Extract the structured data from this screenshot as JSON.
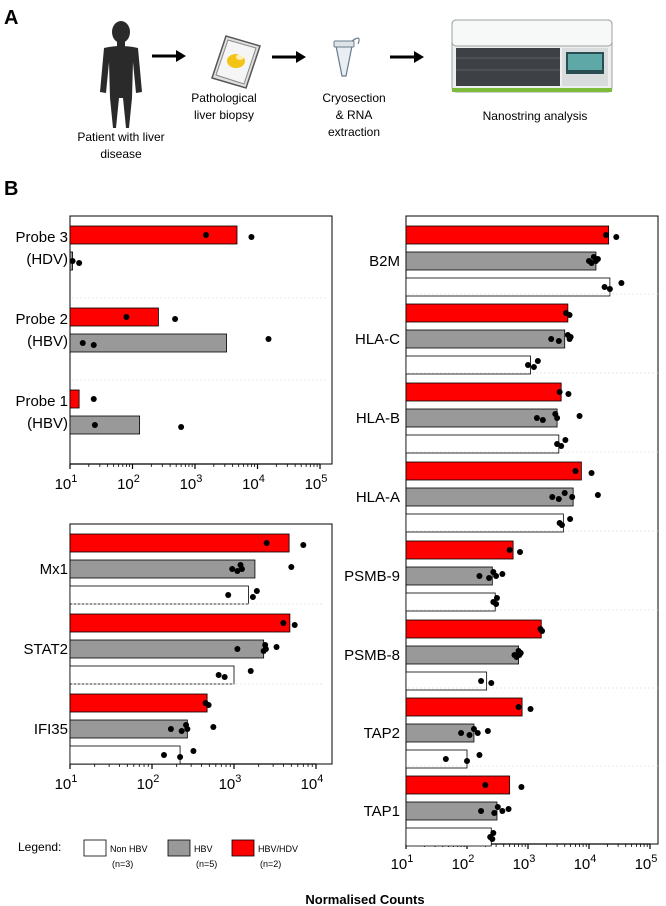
{
  "panel_a": {
    "label": "A",
    "steps": [
      {
        "lines": [
          "Patient with liver",
          "disease"
        ]
      },
      {
        "lines": [
          "Pathological",
          "liver biopsy"
        ]
      },
      {
        "lines": [
          "Cryosection",
          "& RNA",
          "extraction"
        ]
      },
      {
        "lines": [
          "Nanostring analysis"
        ]
      }
    ]
  },
  "panel_b": {
    "label": "B",
    "xlabel": "Normalised Counts",
    "legend": {
      "title": "Legend:",
      "items": [
        {
          "name": "Non HBV",
          "n": "(n=3)",
          "color": "#ffffff"
        },
        {
          "name": "HBV",
          "n": "(n=5)",
          "color": "#999999"
        },
        {
          "name": "HBV/HDV",
          "n": "(n=2)",
          "color": "#ff0000"
        }
      ]
    }
  },
  "colors": {
    "hdv": "#ff0000",
    "hbv": "#999999",
    "non": "#ffffff",
    "dot": "#000000"
  },
  "chart_data": [
    {
      "id": "probes",
      "type": "bar",
      "scale": "log",
      "xlim": [
        10,
        100000
      ],
      "ticks": [
        "10",
        "10",
        "10",
        "10",
        "10"
      ],
      "tick_exp": [
        "1",
        "2",
        "3",
        "4",
        "5"
      ],
      "groups": [
        {
          "name": [
            "Probe 3",
            "(HDV)"
          ],
          "series": [
            {
              "group": "HBV/HDV",
              "value": 4700,
              "points": [
                1500,
                8000
              ]
            },
            {
              "group": "HBV",
              "value": 11,
              "points": [
                11,
                14
              ]
            }
          ]
        },
        {
          "name": [
            "Probe 2",
            "(HBV)"
          ],
          "series": [
            {
              "group": "HBV/HDV",
              "value": 260,
              "points": [
                80,
                480
              ]
            },
            {
              "group": "HBV",
              "value": 3200,
              "points": [
                16,
                24,
                15000
              ]
            }
          ]
        },
        {
          "name": [
            "Probe 1",
            "(HBV)"
          ],
          "series": [
            {
              "group": "HBV/HDV",
              "value": 14,
              "points": [
                24
              ]
            },
            {
              "group": "HBV",
              "value": 130,
              "points": [
                25,
                600
              ]
            }
          ]
        }
      ]
    },
    {
      "id": "isg",
      "type": "bar",
      "scale": "log",
      "xlim": [
        10,
        10000
      ],
      "ticks": [
        "10",
        "10",
        "10",
        "10"
      ],
      "tick_exp": [
        "1",
        "2",
        "3",
        "4"
      ],
      "groups": [
        {
          "name": [
            "Mx1"
          ],
          "series": [
            {
              "group": "HBV/HDV",
              "value": 4700,
              "points": [
                2500,
                7000
              ]
            },
            {
              "group": "HBV",
              "value": 1800,
              "points": [
                950,
                1100,
                1200,
                1250,
                5000
              ]
            },
            {
              "group": "Non HBV",
              "value": 1500,
              "points": [
                850,
                1700,
                1900
              ]
            }
          ]
        },
        {
          "name": [
            "STAT2"
          ],
          "series": [
            {
              "group": "HBV/HDV",
              "value": 4800,
              "points": [
                4000,
                5500
              ]
            },
            {
              "group": "HBV",
              "value": 2300,
              "points": [
                1100,
                2300,
                2400,
                2450,
                3300
              ]
            },
            {
              "group": "Non HBV",
              "value": 1000,
              "points": [
                650,
                770,
                1600
              ]
            }
          ]
        },
        {
          "name": [
            "IFI35"
          ],
          "series": [
            {
              "group": "HBV/HDV",
              "value": 470,
              "points": [
                450,
                490
              ]
            },
            {
              "group": "HBV",
              "value": 270,
              "points": [
                170,
                230,
                260,
                270,
                560
              ]
            },
            {
              "group": "Non HBV",
              "value": 220,
              "points": [
                140,
                220,
                320
              ]
            }
          ]
        }
      ]
    },
    {
      "id": "mhc",
      "type": "bar",
      "scale": "log",
      "xlim": [
        10,
        100000
      ],
      "ticks": [
        "10",
        "10",
        "10",
        "10",
        "10"
      ],
      "tick_exp": [
        "1",
        "2",
        "3",
        "4",
        "5"
      ],
      "groups": [
        {
          "name": [
            "B2M"
          ],
          "series": [
            {
              "group": "HBV/HDV",
              "value": 21000,
              "points": [
                19000,
                28000
              ]
            },
            {
              "group": "HBV",
              "value": 13000,
              "points": [
                10000,
                11000,
                12000,
                13000,
                14000
              ]
            },
            {
              "group": "Non HBV",
              "value": 22000,
              "points": [
                18000,
                22000,
                34000
              ]
            }
          ]
        },
        {
          "name": [
            "HLA-C"
          ],
          "series": [
            {
              "group": "HBV/HDV",
              "value": 4500,
              "points": [
                4200,
                4800
              ]
            },
            {
              "group": "HBV",
              "value": 4000,
              "points": [
                2400,
                3200,
                4500,
                4800,
                5000
              ]
            },
            {
              "group": "Non HBV",
              "value": 1100,
              "points": [
                1000,
                1250,
                1450
              ]
            }
          ]
        },
        {
          "name": [
            "HLA-B"
          ],
          "series": [
            {
              "group": "HBV/HDV",
              "value": 3500,
              "points": [
                3300,
                4600
              ]
            },
            {
              "group": "HBV",
              "value": 3000,
              "points": [
                1400,
                1750,
                2800,
                3000,
                7000
              ]
            },
            {
              "group": "Non HBV",
              "value": 3200,
              "points": [
                3000,
                3500,
                4100
              ]
            }
          ]
        },
        {
          "name": [
            "HLA-A"
          ],
          "series": [
            {
              "group": "HBV/HDV",
              "value": 7500,
              "points": [
                6000,
                11000
              ]
            },
            {
              "group": "HBV",
              "value": 5500,
              "points": [
                2500,
                3200,
                4000,
                5300,
                14000
              ]
            },
            {
              "group": "Non HBV",
              "value": 3800,
              "points": [
                3300,
                3600,
                4900
              ]
            }
          ]
        },
        {
          "name": [
            "PSMB-9"
          ],
          "series": [
            {
              "group": "HBV/HDV",
              "value": 570,
              "points": [
                500,
                740
              ]
            },
            {
              "group": "HBV",
              "value": 260,
              "points": [
                160,
                230,
                270,
                300,
                380
              ]
            },
            {
              "group": "Non HBV",
              "value": 290,
              "points": [
                270,
                300,
                310
              ]
            }
          ]
        },
        {
          "name": [
            "PSMB-8"
          ],
          "series": [
            {
              "group": "HBV/HDV",
              "value": 1650,
              "points": [
                1600,
                1700
              ]
            },
            {
              "group": "HBV",
              "value": 700,
              "points": [
                600,
                650,
                700,
                720,
                760
              ]
            },
            {
              "group": "Non HBV",
              "value": 210,
              "points": [
                170,
                250
              ]
            }
          ]
        },
        {
          "name": [
            "TAP2"
          ],
          "series": [
            {
              "group": "HBV/HDV",
              "value": 800,
              "points": [
                700,
                1100
              ]
            },
            {
              "group": "HBV",
              "value": 130,
              "points": [
                80,
                110,
                130,
                150,
                220
              ]
            },
            {
              "group": "Non HBV",
              "value": 100,
              "points": [
                45,
                100,
                160
              ]
            }
          ]
        },
        {
          "name": [
            "TAP1"
          ],
          "series": [
            {
              "group": "HBV/HDV",
              "value": 500,
              "points": [
                200,
                780
              ]
            },
            {
              "group": "HBV",
              "value": 310,
              "points": [
                170,
                280,
                320,
                380,
                480
              ]
            },
            {
              "group": "Non HBV",
              "value": 250,
              "points": [
                240,
                260,
                270
              ]
            }
          ]
        }
      ]
    }
  ]
}
